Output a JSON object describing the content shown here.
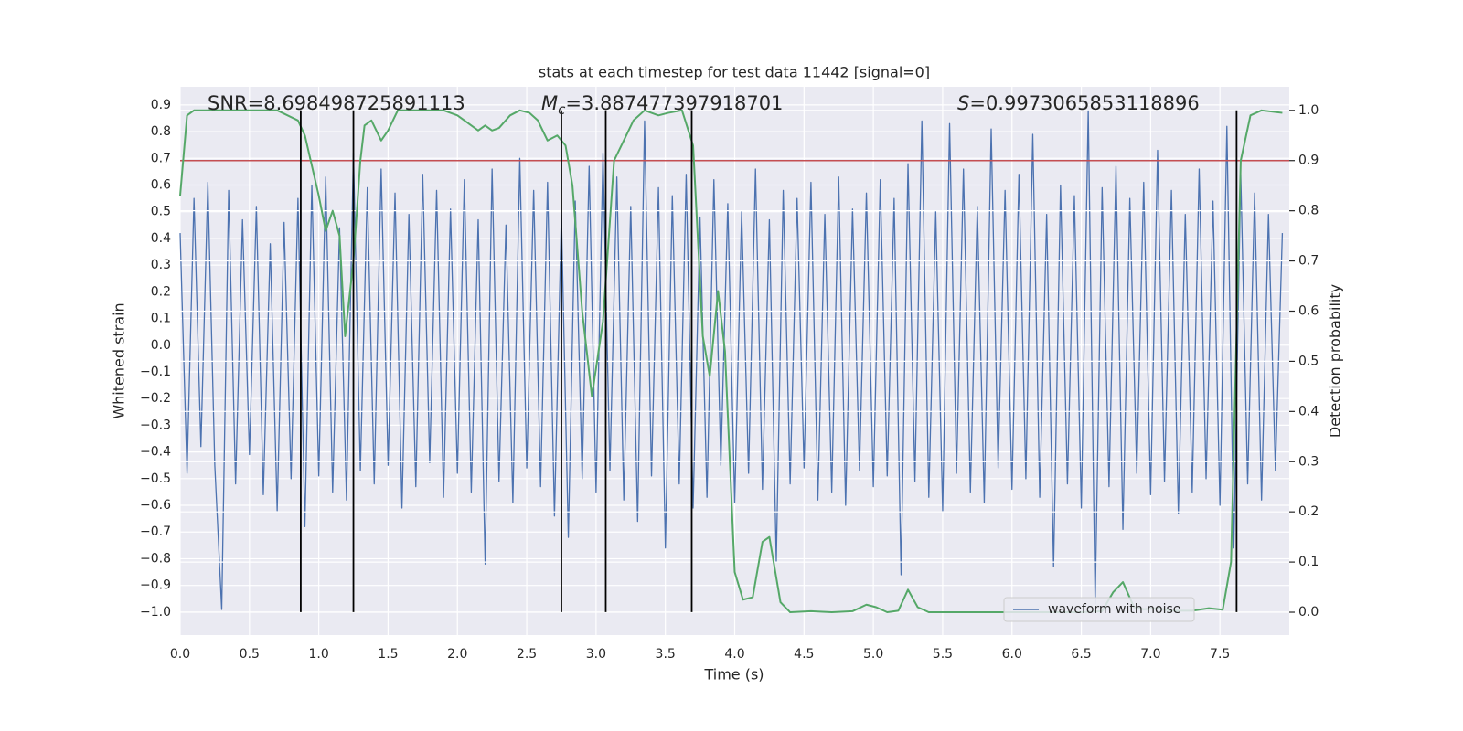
{
  "chart_data": {
    "type": "line",
    "title": "stats at each timestep for test data 11442 [signal=0]",
    "xlabel": "Time (s)",
    "ylabel": "Whitened strain",
    "y2label": "Detection probability",
    "xlim": [
      0,
      8.0
    ],
    "ylim": [
      -1.086,
      0.968
    ],
    "y2lim": [
      -0.0455,
      1.047
    ],
    "xticks": [
      {
        "value": 0,
        "label": "0.0"
      },
      {
        "value": 0.5,
        "label": "0.5"
      },
      {
        "value": 1,
        "label": "1.0"
      },
      {
        "value": 1.5,
        "label": "1.5"
      },
      {
        "value": 2,
        "label": "2.0"
      },
      {
        "value": 2.5,
        "label": "2.5"
      },
      {
        "value": 3,
        "label": "3.0"
      },
      {
        "value": 3.5,
        "label": "3.5"
      },
      {
        "value": 4,
        "label": "4.0"
      },
      {
        "value": 4.5,
        "label": "4.5"
      },
      {
        "value": 5,
        "label": "5.0"
      },
      {
        "value": 5.5,
        "label": "5.5"
      },
      {
        "value": 6,
        "label": "6.0"
      },
      {
        "value": 6.5,
        "label": "6.5"
      },
      {
        "value": 7,
        "label": "7.0"
      },
      {
        "value": 7.5,
        "label": "7.5"
      }
    ],
    "yticks": [
      {
        "value": -1.0,
        "label": "−1.0"
      },
      {
        "value": -0.9,
        "label": "−0.9"
      },
      {
        "value": -0.8,
        "label": "−0.8"
      },
      {
        "value": -0.7,
        "label": "−0.7"
      },
      {
        "value": -0.6,
        "label": "−0.6"
      },
      {
        "value": -0.5,
        "label": "−0.5"
      },
      {
        "value": -0.4,
        "label": "−0.4"
      },
      {
        "value": -0.3,
        "label": "−0.3"
      },
      {
        "value": -0.2,
        "label": "−0.2"
      },
      {
        "value": -0.1,
        "label": "−0.1"
      },
      {
        "value": 0,
        "label": "0.0"
      },
      {
        "value": 0.1,
        "label": "0.1"
      },
      {
        "value": 0.2,
        "label": "0.2"
      },
      {
        "value": 0.3,
        "label": "0.3"
      },
      {
        "value": 0.4,
        "label": "0.4"
      },
      {
        "value": 0.5,
        "label": "0.5"
      },
      {
        "value": 0.6,
        "label": "0.6"
      },
      {
        "value": 0.7,
        "label": "0.7"
      },
      {
        "value": 0.8,
        "label": "0.8"
      },
      {
        "value": 0.9,
        "label": "0.9"
      }
    ],
    "y2ticks": [
      {
        "value": 0,
        "label": "0.0"
      },
      {
        "value": 0.1,
        "label": "0.1"
      },
      {
        "value": 0.2,
        "label": "0.2"
      },
      {
        "value": 0.3,
        "label": "0.3"
      },
      {
        "value": 0.4,
        "label": "0.4"
      },
      {
        "value": 0.5,
        "label": "0.5"
      },
      {
        "value": 0.6,
        "label": "0.6"
      },
      {
        "value": 0.7,
        "label": "0.7"
      },
      {
        "value": 0.8,
        "label": "0.8"
      },
      {
        "value": 0.9,
        "label": "0.9"
      },
      {
        "value": 1,
        "label": "1.0"
      }
    ],
    "grid": true,
    "legend": "lower right",
    "series": [
      {
        "name": "waveform with noise",
        "color": "#4c72b0",
        "x": [
          0,
          0.05,
          0.1,
          0.15,
          0.2,
          0.25,
          0.3,
          0.35,
          0.4,
          0.45,
          0.5,
          0.55,
          0.6,
          0.65,
          0.7,
          0.75,
          0.8,
          0.85,
          0.9,
          0.95,
          1,
          1.05,
          1.1,
          1.15,
          1.2,
          1.25,
          1.3,
          1.35,
          1.4,
          1.45,
          1.5,
          1.55,
          1.6,
          1.65,
          1.7,
          1.75,
          1.8,
          1.85,
          1.9,
          1.95,
          2,
          2.05,
          2.1,
          2.15,
          2.2,
          2.25,
          2.3,
          2.35,
          2.4,
          2.45,
          2.5,
          2.55,
          2.6,
          2.65,
          2.7,
          2.75,
          2.8,
          2.85,
          2.9,
          2.95,
          3,
          3.05,
          3.1,
          3.15,
          3.2,
          3.25,
          3.3,
          3.35,
          3.4,
          3.45,
          3.5,
          3.55,
          3.6,
          3.65,
          3.7,
          3.75,
          3.8,
          3.85,
          3.9,
          3.95,
          4,
          4.05,
          4.1,
          4.15,
          4.2,
          4.25,
          4.3,
          4.35,
          4.4,
          4.45,
          4.5,
          4.55,
          4.6,
          4.65,
          4.7,
          4.75,
          4.8,
          4.85,
          4.9,
          4.95,
          5,
          5.05,
          5.1,
          5.15,
          5.2,
          5.25,
          5.3,
          5.35,
          5.4,
          5.45,
          5.5,
          5.55,
          5.6,
          5.65,
          5.7,
          5.75,
          5.8,
          5.85,
          5.9,
          5.95,
          6,
          6.05,
          6.1,
          6.15,
          6.2,
          6.25,
          6.3,
          6.35,
          6.4,
          6.45,
          6.5,
          6.55,
          6.6,
          6.65,
          6.7,
          6.75,
          6.8,
          6.85,
          6.9,
          6.95,
          7,
          7.05,
          7.1,
          7.15,
          7.2,
          7.25,
          7.3,
          7.35,
          7.4,
          7.45,
          7.5,
          7.55,
          7.6,
          7.65,
          7.7,
          7.75,
          7.8,
          7.85,
          7.9,
          7.95
        ],
        "values": [
          0.42,
          -0.48,
          0.55,
          -0.38,
          0.61,
          -0.45,
          -0.99,
          0.58,
          -0.52,
          0.47,
          -0.41,
          0.52,
          -0.56,
          0.38,
          -0.62,
          0.46,
          -0.5,
          0.55,
          -0.68,
          0.6,
          -0.49,
          0.63,
          -0.55,
          0.44,
          -0.58,
          0.72,
          -0.47,
          0.59,
          -0.52,
          0.66,
          -0.45,
          0.57,
          -0.61,
          0.49,
          -0.53,
          0.64,
          -0.44,
          0.58,
          -0.57,
          0.51,
          -0.48,
          0.62,
          -0.55,
          0.47,
          -0.82,
          0.66,
          -0.51,
          0.45,
          -0.59,
          0.7,
          -0.46,
          0.58,
          -0.53,
          0.61,
          -0.64,
          0.49,
          -0.72,
          0.54,
          -0.5,
          0.67,
          -0.55,
          0.72,
          -0.47,
          0.63,
          -0.58,
          0.52,
          -0.66,
          0.84,
          -0.49,
          0.59,
          -0.76,
          0.56,
          -0.52,
          0.64,
          -0.61,
          0.48,
          -0.57,
          0.62,
          -0.45,
          0.53,
          -0.59,
          0.5,
          -0.48,
          0.66,
          -0.54,
          0.47,
          -0.81,
          0.58,
          -0.52,
          0.55,
          -0.46,
          0.61,
          -0.58,
          0.49,
          -0.55,
          0.63,
          -0.6,
          0.51,
          -0.47,
          0.57,
          -0.53,
          0.62,
          -0.49,
          0.55,
          -0.86,
          0.68,
          -0.51,
          0.84,
          -0.57,
          0.5,
          -0.62,
          0.83,
          -0.48,
          0.66,
          -0.55,
          0.52,
          -0.59,
          0.81,
          -0.46,
          0.58,
          -0.54,
          0.64,
          -0.5,
          0.79,
          -0.57,
          0.49,
          -0.83,
          0.6,
          -0.52,
          0.56,
          -0.61,
          0.88,
          -0.97,
          0.59,
          -0.53,
          0.67,
          -0.69,
          0.55,
          -0.48,
          0.61,
          -0.56,
          0.73,
          -0.51,
          0.58,
          -0.63,
          0.49,
          -0.55,
          0.66,
          -0.5,
          0.54,
          -0.6,
          0.82,
          -0.76,
          0.64,
          -0.52,
          0.57,
          -0.58,
          0.49,
          -0.47,
          0.42
        ]
      },
      {
        "color": "#55a868",
        "axis": "y2",
        "x": [
          0,
          0.05,
          0.1,
          0.5,
          0.7,
          0.85,
          0.9,
          1,
          1.05,
          1.1,
          1.15,
          1.19,
          1.25,
          1.3,
          1.33,
          1.38,
          1.45,
          1.5,
          1.57,
          1.9,
          2,
          2.1,
          2.15,
          2.2,
          2.25,
          2.3,
          2.38,
          2.45,
          2.52,
          2.58,
          2.65,
          2.72,
          2.78,
          2.83,
          2.9,
          2.97,
          3.05,
          3.13,
          3.2,
          3.27,
          3.35,
          3.45,
          3.52,
          3.62,
          3.7,
          3.77,
          3.82,
          3.88,
          3.93,
          4,
          4.06,
          4.13,
          4.2,
          4.25,
          4.33,
          4.4,
          4.55,
          4.7,
          4.85,
          4.95,
          5.02,
          5.1,
          5.18,
          5.25,
          5.32,
          5.4,
          5.8,
          6.5,
          6.65,
          6.73,
          6.8,
          6.88,
          6.95,
          7.05,
          7.15,
          7.3,
          7.42,
          7.52,
          7.58,
          7.65,
          7.72,
          7.8,
          7.95
        ],
        "values": [
          0.83,
          0.99,
          1.0,
          1.0,
          1.0,
          0.98,
          0.95,
          0.83,
          0.76,
          0.8,
          0.75,
          0.55,
          0.7,
          0.9,
          0.97,
          0.98,
          0.94,
          0.96,
          1.0,
          1.0,
          0.99,
          0.97,
          0.96,
          0.97,
          0.96,
          0.965,
          0.99,
          1.0,
          0.995,
          0.98,
          0.94,
          0.95,
          0.93,
          0.85,
          0.6,
          0.43,
          0.58,
          0.9,
          0.94,
          0.98,
          1.0,
          0.99,
          0.995,
          1.0,
          0.93,
          0.55,
          0.47,
          0.64,
          0.52,
          0.08,
          0.025,
          0.03,
          0.14,
          0.15,
          0.02,
          0.0,
          0.002,
          0.0,
          0.002,
          0.015,
          0.01,
          0.0,
          0.003,
          0.045,
          0.01,
          0.0,
          0.0,
          0.0,
          0.002,
          0.04,
          0.06,
          0.01,
          0.006,
          0.008,
          0.003,
          0.003,
          0.008,
          0.005,
          0.1,
          0.9,
          0.99,
          1.0,
          0.995
        ]
      }
    ],
    "hlines": [
      {
        "value": 0.9,
        "axis": "y2",
        "color": "#c44e52"
      }
    ],
    "vlines": {
      "x": [
        0.87,
        1.25,
        2.75,
        3.07,
        3.69,
        7.62
      ],
      "ymin": -1.0,
      "ymax": 0.88,
      "color": "#000000"
    },
    "annotations": [
      {
        "text": "SNR=8.698498725891113"
      },
      {
        "symbol": "M",
        "subscript": "c",
        "text": "=3.887477397918701"
      },
      {
        "symbol": "S",
        "text": "=0.9973065853118896"
      }
    ]
  }
}
